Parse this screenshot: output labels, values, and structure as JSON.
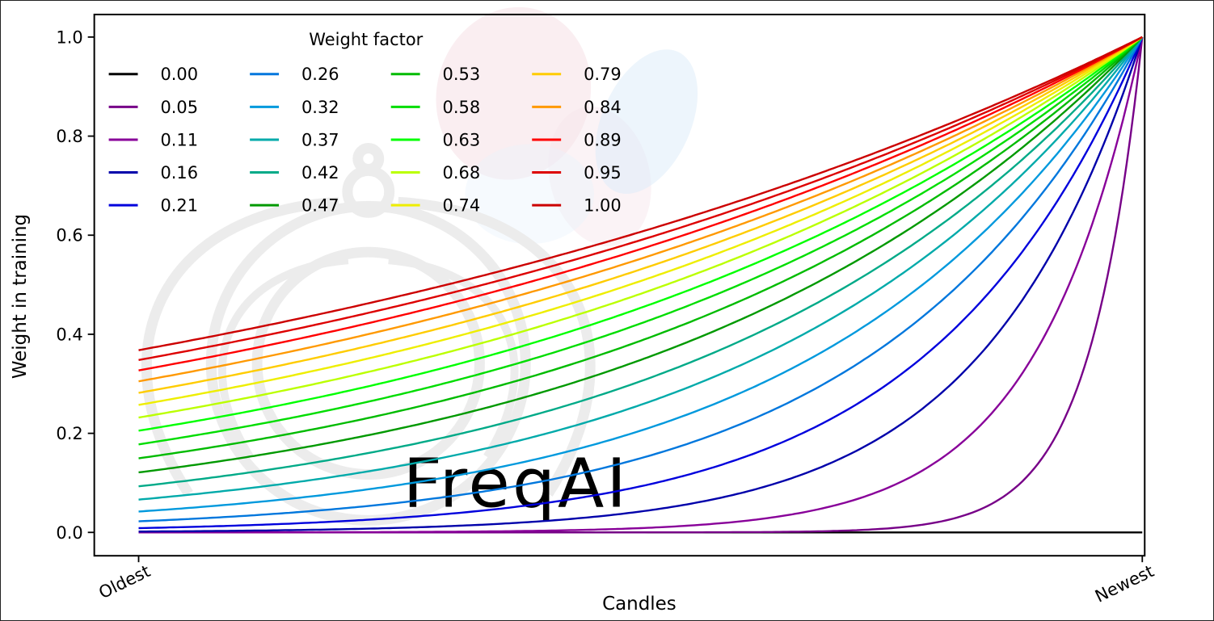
{
  "chart_data": {
    "type": "line",
    "title": "",
    "legend_title": "Weight factor",
    "xlabel": "Candles",
    "ylabel": "Weight in training",
    "x_tick_labels": [
      "Oldest",
      "Newest"
    ],
    "y_ticks": [
      0.0,
      0.2,
      0.4,
      0.6,
      0.8,
      1.0
    ],
    "y_tick_labels": [
      "0.0",
      "0.2",
      "0.4",
      "0.6",
      "0.8",
      "1.0"
    ],
    "ylim": [
      0.0,
      1.0
    ],
    "grid": false,
    "legend_position": "upper-left",
    "legend_columns": 4,
    "legend_rows": 5,
    "curve_model": "weight(x) = exp(-(1 - x) / factor) for normalized candle position x in [0,1]; factor 0.00 stays at 0; all curves converge to 1.0 at Newest",
    "y_newest_all_series": 1.0,
    "series": [
      {
        "label": "0.00",
        "factor": 0.0,
        "y_oldest": 0.0,
        "color": "#000000"
      },
      {
        "label": "0.05",
        "factor": 0.0526,
        "y_oldest": 0.0,
        "color": "#770088"
      },
      {
        "label": "0.11",
        "factor": 0.1053,
        "y_oldest": 0.0001,
        "color": "#880099"
      },
      {
        "label": "0.16",
        "factor": 0.1579,
        "y_oldest": 0.0018,
        "color": "#0000AA"
      },
      {
        "label": "0.21",
        "factor": 0.2105,
        "y_oldest": 0.0087,
        "color": "#0000DD"
      },
      {
        "label": "0.26",
        "factor": 0.2632,
        "y_oldest": 0.0224,
        "color": "#0077DD"
      },
      {
        "label": "0.32",
        "factor": 0.3158,
        "y_oldest": 0.0421,
        "color": "#0099DD"
      },
      {
        "label": "0.37",
        "factor": 0.3684,
        "y_oldest": 0.0663,
        "color": "#00AAAA"
      },
      {
        "label": "0.42",
        "factor": 0.4211,
        "y_oldest": 0.093,
        "color": "#00AA88"
      },
      {
        "label": "0.47",
        "factor": 0.4737,
        "y_oldest": 0.1211,
        "color": "#009900"
      },
      {
        "label": "0.53",
        "factor": 0.5263,
        "y_oldest": 0.1496,
        "color": "#00BB00"
      },
      {
        "label": "0.58",
        "factor": 0.5789,
        "y_oldest": 0.1778,
        "color": "#00DD00"
      },
      {
        "label": "0.63",
        "factor": 0.6316,
        "y_oldest": 0.2053,
        "color": "#00FF00"
      },
      {
        "label": "0.68",
        "factor": 0.6842,
        "y_oldest": 0.2318,
        "color": "#BBFF00"
      },
      {
        "label": "0.74",
        "factor": 0.7368,
        "y_oldest": 0.2574,
        "color": "#EEEE00"
      },
      {
        "label": "0.79",
        "factor": 0.7895,
        "y_oldest": 0.2817,
        "color": "#FFCC00"
      },
      {
        "label": "0.84",
        "factor": 0.8421,
        "y_oldest": 0.305,
        "color": "#FF9900"
      },
      {
        "label": "0.89",
        "factor": 0.8947,
        "y_oldest": 0.327,
        "color": "#FF0000"
      },
      {
        "label": "0.95",
        "factor": 0.9474,
        "y_oldest": 0.348,
        "color": "#DD0000"
      },
      {
        "label": "1.00",
        "factor": 1.0,
        "y_oldest": 0.3679,
        "color": "#CC0000"
      }
    ]
  },
  "watermark": {
    "text": "FreqAI"
  }
}
